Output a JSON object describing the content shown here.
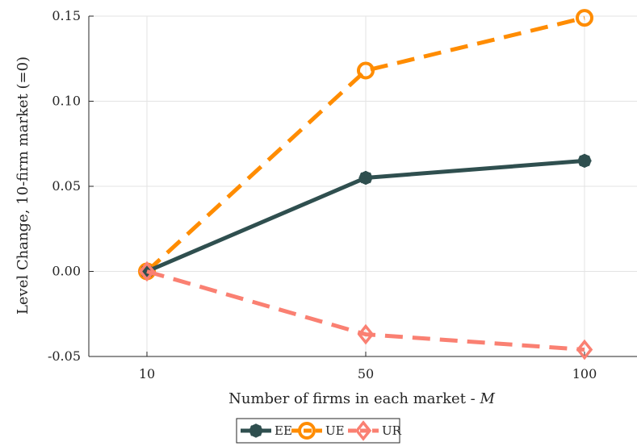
{
  "chart_data": {
    "type": "line",
    "x": [
      10,
      50,
      100
    ],
    "x_tick_labels": [
      "10",
      "50",
      "100"
    ],
    "xlabel": "Number of firms in each market - M",
    "xlabel_parts": {
      "text": "Number of firms in each market - ",
      "var": "M"
    },
    "ylabel": "Level Change, 10-firm market (=0)",
    "ylim": [
      -0.05,
      0.15
    ],
    "y_ticks": [
      -0.05,
      0.0,
      0.05,
      0.1,
      0.15
    ],
    "y_tick_labels": [
      "-0.05",
      "0.00",
      "0.05",
      "0.10",
      "0.15"
    ],
    "grid": true,
    "legend_position": "bottom-center",
    "series": [
      {
        "name": "EE",
        "values": [
          0.0,
          0.055,
          0.065
        ],
        "color": "#2f4f4f",
        "line": "solid",
        "marker": "filled-circle"
      },
      {
        "name": "UE",
        "values": [
          0.0,
          0.118,
          0.149
        ],
        "color": "#ff8c00",
        "line": "dashed",
        "marker": "open-circle"
      },
      {
        "name": "UR",
        "values": [
          0.0,
          -0.037,
          -0.046
        ],
        "color": "#fa8072",
        "line": "dashed",
        "marker": "open-diamond"
      }
    ]
  }
}
